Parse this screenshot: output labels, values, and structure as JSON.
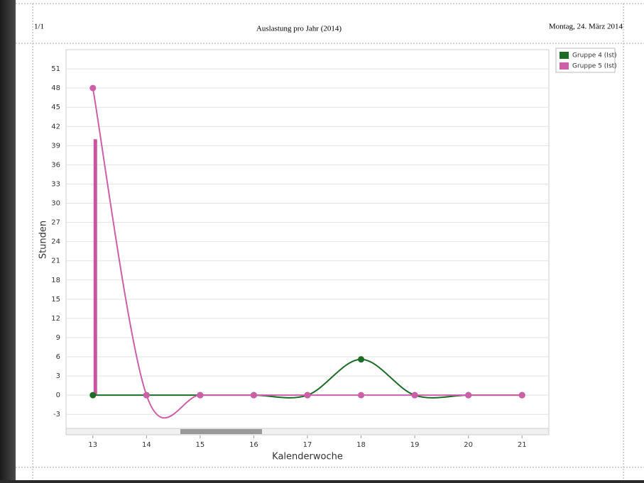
{
  "header": {
    "page": "1/1",
    "title": "Auslastung pro Jahr (2014)",
    "date": "Montag, 24. März 2014"
  },
  "chart_data": {
    "type": "line",
    "smooth": true,
    "y_label": "Stunden",
    "x_label": "Kalenderwoche",
    "x": [
      13,
      14,
      15,
      16,
      17,
      18,
      19,
      20,
      21
    ],
    "series": [
      {
        "name": "Gruppe 4 (Ist)",
        "color": "#1e6b28",
        "values": [
          0,
          0,
          0,
          0,
          0,
          5.6,
          0,
          0,
          0
        ]
      },
      {
        "name": "Gruppe 5 (Ist)",
        "color": "#cc5fa8",
        "values": [
          48,
          0,
          0,
          0,
          0,
          0,
          0,
          0,
          0
        ]
      },
      {
        "type": "bar",
        "color": "#c9559f",
        "values": [
          40,
          null,
          null,
          null,
          null,
          null,
          null,
          null,
          null
        ]
      }
    ],
    "xlim": [
      12.5,
      21.5
    ],
    "xticks": [
      13,
      14,
      15,
      16,
      17,
      18,
      19,
      20,
      21
    ],
    "ylim": [
      -5.3,
      54
    ],
    "yticks": [
      -3,
      0,
      3,
      6,
      9,
      12,
      15,
      18,
      21,
      24,
      27,
      30,
      33,
      36,
      39,
      42,
      45,
      48,
      51
    ],
    "grid": true,
    "legend": "top-right"
  }
}
